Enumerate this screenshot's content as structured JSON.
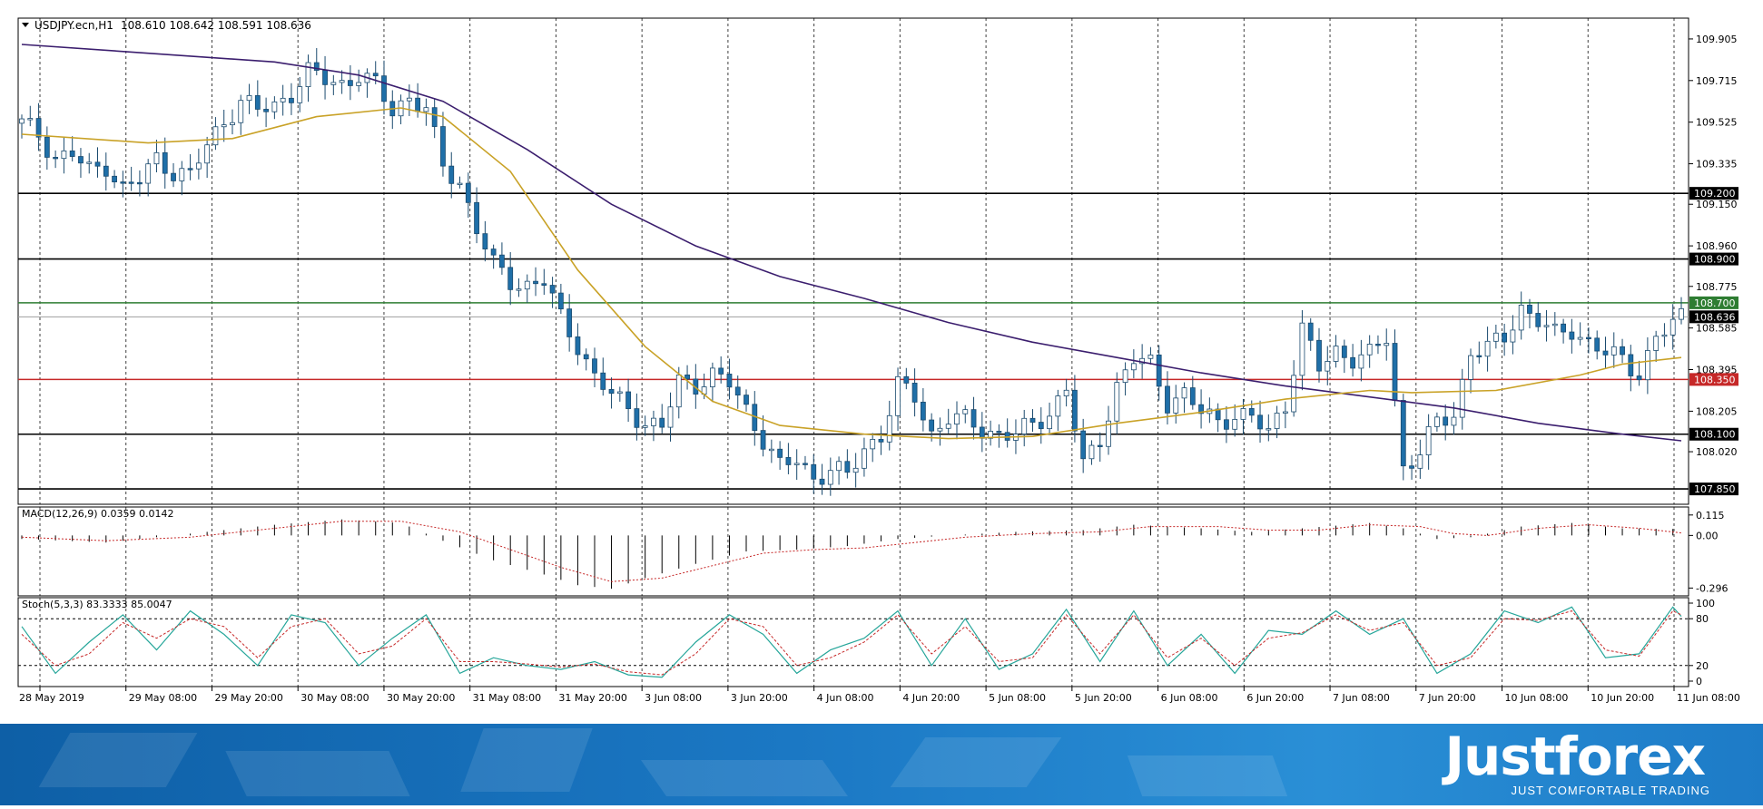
{
  "header": {
    "symbol": "USDJPY.ecn,H1",
    "ohlc": "108.610 108.642 108.591 108.636"
  },
  "brand": {
    "name": "Justforex",
    "tagline": "JUST COMFORTABLE TRADING"
  },
  "colors": {
    "bull": "#ffffff",
    "bear": "#1f6fa8",
    "candle_outline": "#1a4a6e",
    "ma_slow": "#3b1e6e",
    "ma_fast": "#c9a227",
    "level_black": "#000000",
    "level_green": "#2e7d32",
    "level_red": "#c62828",
    "price_gray": "#9e9e9e",
    "macd_signal": "#c62828",
    "stoch_main": "#26a69a",
    "stoch_signal": "#c62828",
    "banner": "#1b78c4"
  },
  "chart_data": [
    {
      "type": "candlestick",
      "panel": "price",
      "ylim": [
        107.78,
        110.0
      ],
      "y_ticks": [
        "109.905",
        "109.715",
        "109.525",
        "109.335",
        "109.150",
        "108.960",
        "108.775",
        "108.585",
        "108.395",
        "108.205",
        "108.020"
      ],
      "x_tick_labels": [
        "28 May 2019",
        "29 May 08:00",
        "29 May 20:00",
        "30 May 08:00",
        "30 May 20:00",
        "31 May 08:00",
        "31 May 20:00",
        "3 Jun 08:00",
        "3 Jun 20:00",
        "4 Jun 08:00",
        "4 Jun 20:00",
        "5 Jun 08:00",
        "5 Jun 20:00",
        "6 Jun 08:00",
        "6 Jun 20:00",
        "7 Jun 08:00",
        "7 Jun 20:00",
        "10 Jun 08:00",
        "10 Jun 20:00",
        "11 Jun 08:00"
      ],
      "horizontal_levels": [
        {
          "label": "109.200",
          "value": 109.2,
          "color": "black"
        },
        {
          "label": "108.900",
          "value": 108.9,
          "color": "black"
        },
        {
          "label": "108.700",
          "value": 108.7,
          "color": "green"
        },
        {
          "label": "108.350",
          "value": 108.35,
          "color": "red"
        },
        {
          "label": "108.100",
          "value": 108.1,
          "color": "black"
        },
        {
          "label": "107.850",
          "value": 107.85,
          "color": "black"
        }
      ],
      "current_price": {
        "label": "108.636",
        "value": 108.636
      },
      "close_path": [
        [
          0,
          109.52
        ],
        [
          2,
          109.47
        ],
        [
          4,
          109.36
        ],
        [
          6,
          109.38
        ],
        [
          8,
          109.3
        ],
        [
          10,
          109.33
        ],
        [
          12,
          109.22
        ],
        [
          14,
          109.26
        ],
        [
          16,
          109.36
        ],
        [
          18,
          109.3
        ],
        [
          20,
          109.28
        ],
        [
          22,
          109.42
        ],
        [
          24,
          109.53
        ],
        [
          26,
          109.62
        ],
        [
          28,
          109.58
        ],
        [
          30,
          109.6
        ],
        [
          32,
          109.66
        ],
        [
          34,
          109.75
        ],
        [
          36,
          109.72
        ],
        [
          38,
          109.7
        ],
        [
          40,
          109.74
        ],
        [
          42,
          109.69
        ],
        [
          44,
          109.58
        ],
        [
          46,
          109.64
        ],
        [
          48,
          109.58
        ],
        [
          50,
          109.32
        ],
        [
          52,
          109.25
        ],
        [
          54,
          109.04
        ],
        [
          56,
          108.87
        ],
        [
          58,
          108.8
        ],
        [
          60,
          108.78
        ],
        [
          62,
          108.8
        ],
        [
          64,
          108.63
        ],
        [
          66,
          108.51
        ],
        [
          68,
          108.36
        ],
        [
          70,
          108.28
        ],
        [
          72,
          108.22
        ],
        [
          74,
          108.15
        ],
        [
          76,
          108.13
        ],
        [
          78,
          108.34
        ],
        [
          80,
          108.33
        ],
        [
          82,
          108.37
        ],
        [
          84,
          108.33
        ],
        [
          86,
          108.21
        ],
        [
          88,
          108.08
        ],
        [
          90,
          107.95
        ],
        [
          92,
          107.98
        ],
        [
          94,
          107.9
        ],
        [
          96,
          107.94
        ],
        [
          98,
          107.91
        ],
        [
          100,
          108.03
        ],
        [
          102,
          108.1
        ],
        [
          104,
          108.32
        ],
        [
          106,
          108.27
        ],
        [
          108,
          108.1
        ],
        [
          110,
          108.18
        ],
        [
          112,
          108.16
        ],
        [
          114,
          108.12
        ],
        [
          116,
          108.1
        ],
        [
          118,
          108.1
        ],
        [
          120,
          108.14
        ],
        [
          122,
          108.2
        ],
        [
          124,
          108.31
        ],
        [
          126,
          107.95
        ],
        [
          128,
          108.08
        ],
        [
          130,
          108.32
        ],
        [
          132,
          108.44
        ],
        [
          134,
          108.42
        ],
        [
          136,
          108.25
        ],
        [
          138,
          108.28
        ],
        [
          140,
          108.2
        ],
        [
          142,
          108.16
        ],
        [
          144,
          108.19
        ],
        [
          146,
          108.17
        ],
        [
          148,
          108.11
        ],
        [
          150,
          108.24
        ],
        [
          152,
          108.58
        ],
        [
          154,
          108.4
        ],
        [
          156,
          108.48
        ],
        [
          158,
          108.45
        ],
        [
          160,
          108.46
        ],
        [
          162,
          108.54
        ],
        [
          164,
          107.95
        ],
        [
          166,
          108.02
        ],
        [
          168,
          108.15
        ],
        [
          170,
          108.19
        ],
        [
          172,
          108.48
        ],
        [
          174,
          108.49
        ],
        [
          176,
          108.54
        ],
        [
          178,
          108.68
        ],
        [
          180,
          108.62
        ],
        [
          182,
          108.55
        ],
        [
          184,
          108.58
        ],
        [
          186,
          108.52
        ],
        [
          188,
          108.47
        ],
        [
          190,
          108.44
        ],
        [
          192,
          108.38
        ],
        [
          194,
          108.54
        ],
        [
          196,
          108.6
        ],
        [
          197,
          108.636
        ]
      ],
      "series": [
        {
          "name": "ma_slow",
          "values": [
            [
              0,
              109.88
            ],
            [
              30,
              109.8
            ],
            [
              40,
              109.74
            ],
            [
              50,
              109.62
            ],
            [
              60,
              109.4
            ],
            [
              70,
              109.15
            ],
            [
              80,
              108.96
            ],
            [
              90,
              108.82
            ],
            [
              100,
              108.72
            ],
            [
              110,
              108.61
            ],
            [
              120,
              108.52
            ],
            [
              130,
              108.45
            ],
            [
              140,
              108.38
            ],
            [
              150,
              108.32
            ],
            [
              160,
              108.27
            ],
            [
              170,
              108.22
            ],
            [
              180,
              108.15
            ],
            [
              190,
              108.1
            ],
            [
              197,
              108.07
            ]
          ]
        },
        {
          "name": "ma_fast",
          "values": [
            [
              0,
              109.47
            ],
            [
              15,
              109.43
            ],
            [
              25,
              109.45
            ],
            [
              35,
              109.55
            ],
            [
              45,
              109.59
            ],
            [
              50,
              109.55
            ],
            [
              58,
              109.3
            ],
            [
              66,
              108.85
            ],
            [
              74,
              108.5
            ],
            [
              82,
              108.25
            ],
            [
              90,
              108.14
            ],
            [
              100,
              108.1
            ],
            [
              110,
              108.08
            ],
            [
              120,
              108.09
            ],
            [
              130,
              108.15
            ],
            [
              140,
              108.2
            ],
            [
              150,
              108.26
            ],
            [
              160,
              108.3
            ],
            [
              165,
              108.29
            ],
            [
              175,
              108.3
            ],
            [
              185,
              108.37
            ],
            [
              190,
              108.42
            ],
            [
              197,
              108.45
            ]
          ]
        }
      ]
    },
    {
      "type": "histogram",
      "panel": "macd",
      "label": "MACD(12,26,9) 0.0359 0.0142",
      "y_ticks": [
        "0.115",
        "0.00",
        "-0.296"
      ],
      "ylim": [
        -0.34,
        0.16
      ],
      "histogram": [
        [
          0,
          -0.02
        ],
        [
          10,
          -0.04
        ],
        [
          20,
          0.01
        ],
        [
          30,
          0.06
        ],
        [
          38,
          0.09
        ],
        [
          45,
          0.07
        ],
        [
          50,
          -0.03
        ],
        [
          56,
          -0.14
        ],
        [
          62,
          -0.22
        ],
        [
          66,
          -0.28
        ],
        [
          70,
          -0.3
        ],
        [
          74,
          -0.24
        ],
        [
          80,
          -0.16
        ],
        [
          86,
          -0.09
        ],
        [
          92,
          -0.08
        ],
        [
          98,
          -0.06
        ],
        [
          104,
          -0.02
        ],
        [
          110,
          0.0
        ],
        [
          118,
          0.02
        ],
        [
          126,
          0.03
        ],
        [
          132,
          0.06
        ],
        [
          140,
          0.04
        ],
        [
          146,
          0.02
        ],
        [
          152,
          0.04
        ],
        [
          160,
          0.07
        ],
        [
          164,
          0.04
        ],
        [
          168,
          -0.02
        ],
        [
          172,
          -0.01
        ],
        [
          178,
          0.05
        ],
        [
          184,
          0.07
        ],
        [
          190,
          0.04
        ],
        [
          197,
          0.036
        ]
      ],
      "signal": [
        [
          0,
          -0.01
        ],
        [
          10,
          -0.03
        ],
        [
          20,
          -0.01
        ],
        [
          30,
          0.04
        ],
        [
          38,
          0.08
        ],
        [
          45,
          0.08
        ],
        [
          52,
          0.02
        ],
        [
          58,
          -0.08
        ],
        [
          64,
          -0.18
        ],
        [
          70,
          -0.26
        ],
        [
          76,
          -0.24
        ],
        [
          82,
          -0.17
        ],
        [
          88,
          -0.1
        ],
        [
          94,
          -0.08
        ],
        [
          100,
          -0.07
        ],
        [
          106,
          -0.04
        ],
        [
          112,
          -0.01
        ],
        [
          120,
          0.01
        ],
        [
          128,
          0.02
        ],
        [
          134,
          0.05
        ],
        [
          142,
          0.05
        ],
        [
          148,
          0.03
        ],
        [
          154,
          0.03
        ],
        [
          160,
          0.06
        ],
        [
          166,
          0.05
        ],
        [
          170,
          0.01
        ],
        [
          174,
          0.0
        ],
        [
          180,
          0.04
        ],
        [
          186,
          0.06
        ],
        [
          192,
          0.04
        ],
        [
          197,
          0.014
        ]
      ]
    },
    {
      "type": "line",
      "panel": "stochastic",
      "label": "Stoch(5,3,3) 83.3333 85.0047",
      "y_ticks": [
        "100",
        "80",
        "20",
        "0"
      ],
      "ylim": [
        0,
        100
      ],
      "main": [
        [
          0,
          70
        ],
        [
          4,
          10
        ],
        [
          8,
          50
        ],
        [
          12,
          85
        ],
        [
          16,
          40
        ],
        [
          20,
          90
        ],
        [
          24,
          60
        ],
        [
          28,
          20
        ],
        [
          32,
          85
        ],
        [
          36,
          75
        ],
        [
          40,
          20
        ],
        [
          44,
          55
        ],
        [
          48,
          85
        ],
        [
          52,
          10
        ],
        [
          56,
          30
        ],
        [
          60,
          20
        ],
        [
          64,
          15
        ],
        [
          68,
          25
        ],
        [
          72,
          8
        ],
        [
          76,
          5
        ],
        [
          80,
          50
        ],
        [
          84,
          85
        ],
        [
          88,
          60
        ],
        [
          92,
          10
        ],
        [
          96,
          40
        ],
        [
          100,
          55
        ],
        [
          104,
          90
        ],
        [
          108,
          20
        ],
        [
          112,
          80
        ],
        [
          116,
          15
        ],
        [
          120,
          35
        ],
        [
          124,
          92
        ],
        [
          128,
          25
        ],
        [
          132,
          90
        ],
        [
          136,
          20
        ],
        [
          140,
          60
        ],
        [
          144,
          10
        ],
        [
          148,
          65
        ],
        [
          152,
          60
        ],
        [
          156,
          90
        ],
        [
          160,
          60
        ],
        [
          164,
          80
        ],
        [
          168,
          10
        ],
        [
          172,
          35
        ],
        [
          176,
          90
        ],
        [
          180,
          75
        ],
        [
          184,
          95
        ],
        [
          188,
          30
        ],
        [
          192,
          35
        ],
        [
          196,
          95
        ],
        [
          197,
          83
        ]
      ],
      "signal": [
        [
          0,
          60
        ],
        [
          4,
          20
        ],
        [
          8,
          35
        ],
        [
          12,
          75
        ],
        [
          16,
          55
        ],
        [
          20,
          80
        ],
        [
          24,
          70
        ],
        [
          28,
          30
        ],
        [
          32,
          70
        ],
        [
          36,
          80
        ],
        [
          40,
          35
        ],
        [
          44,
          45
        ],
        [
          48,
          80
        ],
        [
          52,
          25
        ],
        [
          56,
          25
        ],
        [
          60,
          22
        ],
        [
          64,
          18
        ],
        [
          68,
          22
        ],
        [
          72,
          12
        ],
        [
          76,
          8
        ],
        [
          80,
          35
        ],
        [
          84,
          80
        ],
        [
          88,
          70
        ],
        [
          92,
          20
        ],
        [
          96,
          30
        ],
        [
          100,
          50
        ],
        [
          104,
          85
        ],
        [
          108,
          35
        ],
        [
          112,
          70
        ],
        [
          116,
          25
        ],
        [
          120,
          30
        ],
        [
          124,
          85
        ],
        [
          128,
          35
        ],
        [
          132,
          85
        ],
        [
          136,
          30
        ],
        [
          140,
          55
        ],
        [
          144,
          20
        ],
        [
          148,
          55
        ],
        [
          152,
          62
        ],
        [
          156,
          85
        ],
        [
          160,
          65
        ],
        [
          164,
          75
        ],
        [
          168,
          20
        ],
        [
          172,
          30
        ],
        [
          176,
          80
        ],
        [
          180,
          78
        ],
        [
          184,
          90
        ],
        [
          188,
          40
        ],
        [
          192,
          32
        ],
        [
          196,
          90
        ],
        [
          197,
          85
        ]
      ]
    }
  ]
}
